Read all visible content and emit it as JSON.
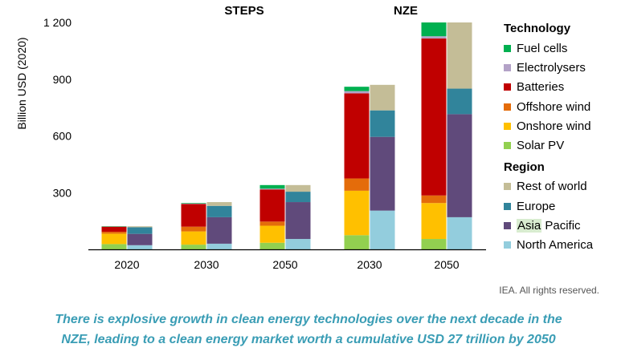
{
  "chart_data": {
    "type": "bar",
    "stacked": true,
    "ylabel": "Billion USD (2020)",
    "ylim": [
      0,
      1200
    ],
    "yticks": [
      300,
      600,
      900,
      1200
    ],
    "ytick_labels": [
      "300",
      "600",
      "900",
      "1 200"
    ],
    "scenario_labels": [
      "STEPS",
      "NZE"
    ],
    "categories": [
      "2020",
      "2030",
      "2050",
      "2030",
      "2050"
    ],
    "scenario_of_category": [
      "STEPS",
      "STEPS",
      "STEPS",
      "NZE",
      "NZE"
    ],
    "technology_series": [
      {
        "name": "Solar PV",
        "color": "#92d050",
        "values": [
          28,
          25,
          35,
          75,
          55
        ]
      },
      {
        "name": "Onshore wind",
        "color": "#ffc000",
        "values": [
          55,
          70,
          90,
          235,
          190
        ]
      },
      {
        "name": "Offshore wind",
        "color": "#e46c0a",
        "values": [
          10,
          25,
          22,
          65,
          40
        ]
      },
      {
        "name": "Batteries",
        "color": "#c00000",
        "values": [
          27,
          120,
          170,
          450,
          830
        ]
      },
      {
        "name": "Electrolysers",
        "color": "#b3a2c7",
        "values": [
          0,
          2,
          4,
          12,
          12
        ]
      },
      {
        "name": "Fuel cells",
        "color": "#00b050",
        "values": [
          2,
          3,
          19,
          23,
          73
        ]
      }
    ],
    "region_series": [
      {
        "name": "North America",
        "color": "#93cddd",
        "values": [
          22,
          30,
          55,
          205,
          170
        ]
      },
      {
        "name": "Asia Pacific",
        "color": "#604a7b",
        "values": [
          60,
          140,
          195,
          390,
          545
        ]
      },
      {
        "name": "Europe",
        "color": "#31849b",
        "values": [
          35,
          60,
          55,
          140,
          135
        ]
      },
      {
        "name": "Rest of world",
        "color": "#c4bd97",
        "values": [
          5,
          20,
          35,
          135,
          350
        ]
      }
    ],
    "legend": {
      "technology_title": "Technology",
      "technology_items": [
        "Fuel cells",
        "Electrolysers",
        "Batteries",
        "Offshore wind",
        "Onshore wind",
        "Solar PV"
      ],
      "region_title": "Region",
      "region_items": [
        "Rest of world",
        "Europe",
        "Asia Pacific",
        "North America"
      ],
      "placement": "right"
    }
  },
  "legend": {
    "technology_title": "Technology",
    "technology_items": [
      {
        "label": "Fuel cells",
        "color": "#00b050"
      },
      {
        "label": "Electrolysers",
        "color": "#b3a2c7"
      },
      {
        "label": "Batteries",
        "color": "#c00000"
      },
      {
        "label": "Offshore wind",
        "color": "#e46c0a"
      },
      {
        "label": "Onshore wind",
        "color": "#ffc000"
      },
      {
        "label": "Solar PV",
        "color": "#92d050"
      }
    ],
    "region_title": "Region",
    "region_items": [
      {
        "label": "Rest of world",
        "color": "#c4bd97"
      },
      {
        "label": "Europe",
        "color": "#31849b"
      },
      {
        "label": "Asia",
        "label_rest": " Pacific",
        "color": "#604a7b"
      },
      {
        "label": "North America",
        "color": "#93cddd"
      }
    ]
  },
  "credit": "IEA. All rights reserved.",
  "caption": {
    "line1": "There is explosive growth in clean energy technologies over the next decade in the",
    "line2": "NZE, leading to a clean energy market worth a cumulative USD 27 trillion by 2050"
  }
}
